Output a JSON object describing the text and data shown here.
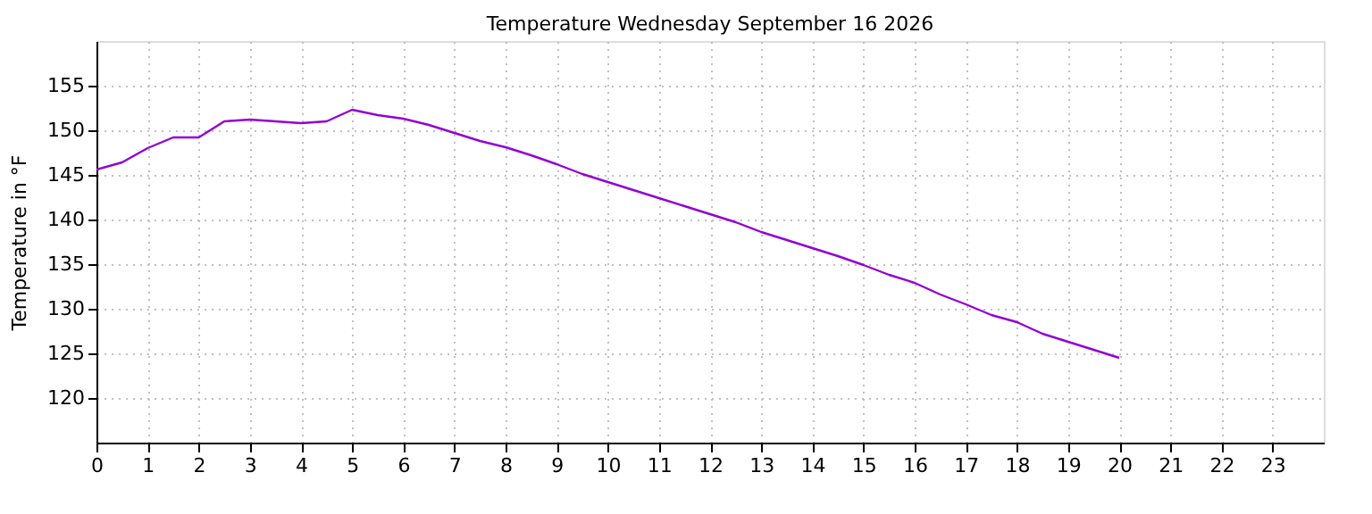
{
  "chart_data": {
    "type": "line",
    "title": "Temperature Wednesday September 16 2026",
    "ylabel": "Temperature in °F",
    "x": [
      0,
      0.5,
      1,
      1.5,
      2,
      2.5,
      3,
      3.5,
      4,
      4.5,
      5,
      5.5,
      6,
      6.5,
      7,
      7.5,
      8,
      8.5,
      9,
      9.5,
      10,
      10.5,
      11,
      11.5,
      12,
      12.5,
      13,
      13.5,
      14,
      14.5,
      15,
      15.5,
      16,
      16.5,
      17,
      17.5,
      18,
      18.5,
      19,
      19.5,
      20
    ],
    "series": [
      {
        "color": "#9400d3",
        "values": [
          145.6,
          146.4,
          148,
          149.2,
          149.2,
          151,
          151.2,
          151,
          150.8,
          151,
          152.3,
          151.7,
          151.3,
          150.6,
          149.7,
          148.8,
          148.1,
          147.2,
          146.2,
          145.1,
          144.2,
          143.3,
          142.4,
          141.5,
          140.6,
          139.7,
          138.6,
          137.7,
          136.8,
          135.9,
          134.9,
          133.8,
          132.9,
          131.6,
          130.5,
          129.3,
          128.5,
          127.2,
          126.3,
          125.4,
          124.5
        ]
      }
    ],
    "xlim": [
      0,
      24
    ],
    "xticks": [
      0,
      1,
      2,
      3,
      4,
      5,
      6,
      7,
      8,
      9,
      10,
      11,
      12,
      13,
      14,
      15,
      16,
      17,
      18,
      19,
      20,
      21,
      22,
      23
    ],
    "ylim": [
      115,
      160
    ],
    "yticks": [
      120,
      125,
      130,
      135,
      140,
      145,
      150,
      155
    ],
    "grid": true,
    "marker": "none",
    "line_style": "solid"
  }
}
